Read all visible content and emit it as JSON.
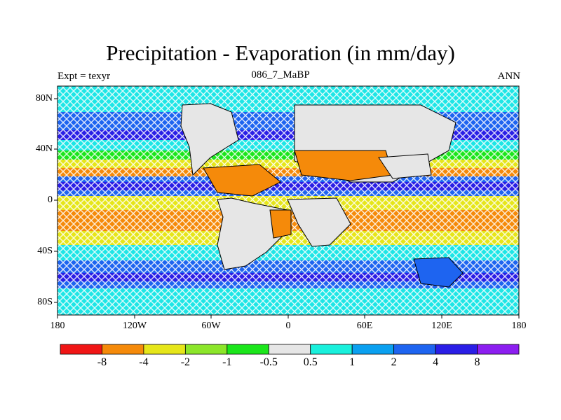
{
  "title": "Precipitation - Evaporation (in mm/day)",
  "left_string": "Expt = texyr",
  "center_string": "086_7_MaBP",
  "right_string": "ANN",
  "lat_labels": [
    "80N",
    "40N",
    "0",
    "40S",
    "80S"
  ],
  "lon_labels": [
    "180",
    "120W",
    "60W",
    "0",
    "60E",
    "120E",
    "180"
  ],
  "colorbar": {
    "colors": [
      "#f01515",
      "#f58a0a",
      "#e6e61a",
      "#8ce62a",
      "#1be61b",
      "#e6e6e6",
      "#19f0dc",
      "#0aa0f0",
      "#1e64f0",
      "#2a1ee6",
      "#8c1ef0"
    ],
    "labels": [
      "-8",
      "-4",
      "-2",
      "-1",
      "-0.5",
      "0.5",
      "1",
      "2",
      "4",
      "8"
    ]
  },
  "colors": {
    "ocean_base": "#1ee6e6",
    "stipple": "#ffffff"
  }
}
